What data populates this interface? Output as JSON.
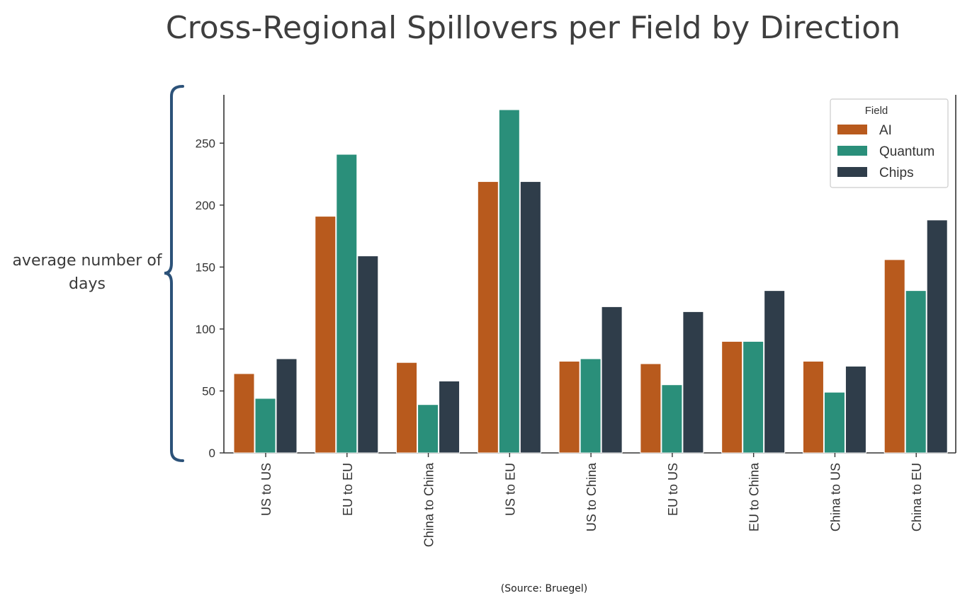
{
  "title": "Cross-Regional Spillovers per Field by Direction",
  "ylabel": "average number of days",
  "source": "(Source: Bruegel)",
  "chart_data": {
    "type": "bar",
    "title": "Cross-Regional Spillovers per Field by Direction",
    "ylabel": "average number of days",
    "xlabel": "",
    "categories": [
      "US to US",
      "EU to EU",
      "China to China",
      "US to EU",
      "US to China",
      "EU to US",
      "EU to China",
      "China to US",
      "China to EU"
    ],
    "series": [
      {
        "name": "AI",
        "color": "#b85a1d",
        "values": [
          64,
          191,
          73,
          219,
          74,
          72,
          90,
          74,
          156
        ]
      },
      {
        "name": "Quantum",
        "color": "#2a8f7a",
        "values": [
          44,
          241,
          39,
          277,
          76,
          55,
          90,
          49,
          131
        ]
      },
      {
        "name": "Chips",
        "color": "#2f3d4a",
        "values": [
          76,
          159,
          58,
          219,
          118,
          114,
          131,
          70,
          188
        ]
      }
    ],
    "yticks": [
      "0",
      "50",
      "100",
      "150",
      "200",
      "250"
    ],
    "ylim": [
      0,
      289
    ],
    "legend_title": "Field",
    "legend_position": "top-right",
    "grid": false
  }
}
